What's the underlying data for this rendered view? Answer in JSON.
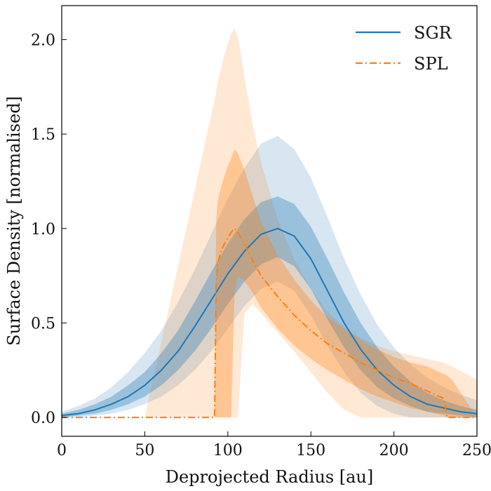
{
  "chart_data": {
    "type": "line",
    "title": "",
    "xlabel": "Deprojected Radius [au]",
    "ylabel": "Surface Density [normalised]",
    "xlim": [
      0,
      250
    ],
    "ylim": [
      -0.1,
      2.18
    ],
    "xticks": [
      0,
      50,
      100,
      150,
      200,
      250
    ],
    "xtick_labels": [
      "0",
      "50",
      "100",
      "150",
      "200",
      "250"
    ],
    "yticks": [
      0.0,
      0.5,
      1.0,
      1.5,
      2.0
    ],
    "ytick_labels": [
      "0.0",
      "0.5",
      "1.0",
      "1.5",
      "2.0"
    ],
    "grid": false,
    "legend_position": "top-right",
    "series": [
      {
        "name": "SGR",
        "color": "#1f77b4",
        "linestyle": "solid",
        "x": [
          0,
          10,
          20,
          30,
          40,
          50,
          60,
          70,
          80,
          90,
          100,
          110,
          120,
          130,
          140,
          150,
          160,
          170,
          180,
          190,
          200,
          210,
          220,
          230,
          240,
          250
        ],
        "y": [
          0.01,
          0.02,
          0.04,
          0.07,
          0.11,
          0.17,
          0.25,
          0.35,
          0.48,
          0.62,
          0.76,
          0.88,
          0.97,
          1.0,
          0.96,
          0.84,
          0.67,
          0.5,
          0.36,
          0.25,
          0.17,
          0.11,
          0.07,
          0.05,
          0.03,
          0.02
        ],
        "band_inner_lower": [
          0.0,
          0.01,
          0.02,
          0.04,
          0.07,
          0.11,
          0.17,
          0.25,
          0.35,
          0.47,
          0.6,
          0.72,
          0.81,
          0.85,
          0.8,
          0.68,
          0.52,
          0.37,
          0.25,
          0.16,
          0.1,
          0.06,
          0.03,
          0.02,
          0.01,
          0.0
        ],
        "band_inner_upper": [
          0.02,
          0.04,
          0.07,
          0.11,
          0.17,
          0.24,
          0.34,
          0.46,
          0.61,
          0.77,
          0.92,
          1.05,
          1.14,
          1.17,
          1.13,
          1.01,
          0.84,
          0.66,
          0.5,
          0.37,
          0.27,
          0.19,
          0.13,
          0.09,
          0.06,
          0.04
        ],
        "band_outer_lower": [
          0.0,
          0.0,
          0.01,
          0.02,
          0.04,
          0.07,
          0.11,
          0.17,
          0.25,
          0.35,
          0.47,
          0.59,
          0.68,
          0.72,
          0.67,
          0.54,
          0.38,
          0.24,
          0.13,
          0.06,
          0.02,
          0.0,
          0.0,
          0.0,
          0.0,
          0.0
        ],
        "band_outer_upper": [
          0.03,
          0.06,
          0.1,
          0.16,
          0.24,
          0.34,
          0.46,
          0.61,
          0.78,
          0.97,
          1.16,
          1.32,
          1.45,
          1.49,
          1.42,
          1.27,
          1.06,
          0.84,
          0.65,
          0.49,
          0.37,
          0.28,
          0.21,
          0.16,
          0.12,
          0.09
        ]
      },
      {
        "name": "SPL",
        "color": "#ff7f0e",
        "linestyle": "dashdot",
        "x": [
          0,
          50,
          90,
          92,
          93,
          94,
          96,
          98,
          100,
          102,
          104,
          106,
          110,
          115,
          120,
          130,
          140,
          150,
          160,
          170,
          180,
          190,
          200,
          210,
          220,
          225,
          230,
          232,
          235,
          250
        ],
        "y": [
          0.0,
          0.0,
          0.0,
          0.0,
          0.7,
          0.82,
          0.88,
          0.92,
          0.95,
          0.98,
          1.0,
          0.98,
          0.92,
          0.83,
          0.75,
          0.64,
          0.54,
          0.46,
          0.39,
          0.34,
          0.29,
          0.25,
          0.21,
          0.18,
          0.14,
          0.12,
          0.1,
          0.0,
          0.0,
          0.0
        ],
        "band_inner_lower": [
          0.0,
          0.0,
          0.0,
          0.0,
          0.0,
          0.0,
          0.0,
          0.0,
          0.0,
          0.0,
          0.65,
          0.75,
          0.72,
          0.66,
          0.58,
          0.47,
          0.38,
          0.31,
          0.25,
          0.2,
          0.15,
          0.11,
          0.08,
          0.05,
          0.03,
          0.02,
          0.01,
          0.0,
          0.0,
          0.0
        ],
        "band_inner_upper": [
          0.0,
          0.0,
          0.0,
          0.0,
          1.05,
          1.15,
          1.22,
          1.28,
          1.33,
          1.37,
          1.42,
          1.4,
          1.31,
          1.17,
          1.04,
          0.86,
          0.73,
          0.62,
          0.53,
          0.47,
          0.41,
          0.36,
          0.32,
          0.29,
          0.27,
          0.25,
          0.23,
          0.22,
          0.2,
          0.0
        ],
        "band_outer_lower": [
          0.0,
          0.0,
          0.0,
          0.0,
          0.0,
          0.0,
          0.0,
          0.0,
          0.0,
          0.0,
          0.0,
          0.0,
          0.55,
          0.6,
          0.55,
          0.45,
          0.35,
          0.24,
          0.13,
          0.04,
          0.0,
          0.0,
          0.0,
          0.0,
          0.0,
          0.0,
          0.0,
          0.0,
          0.0,
          0.0
        ],
        "band_outer_upper": [
          0.0,
          0.0,
          1.6,
          1.68,
          1.72,
          1.78,
          1.85,
          1.92,
          1.98,
          2.03,
          2.06,
          2.02,
          1.8,
          1.55,
          1.35,
          1.05,
          0.84,
          0.68,
          0.56,
          0.48,
          0.42,
          0.38,
          0.35,
          0.33,
          0.31,
          0.3,
          0.29,
          0.28,
          0.27,
          0.2
        ]
      }
    ]
  }
}
